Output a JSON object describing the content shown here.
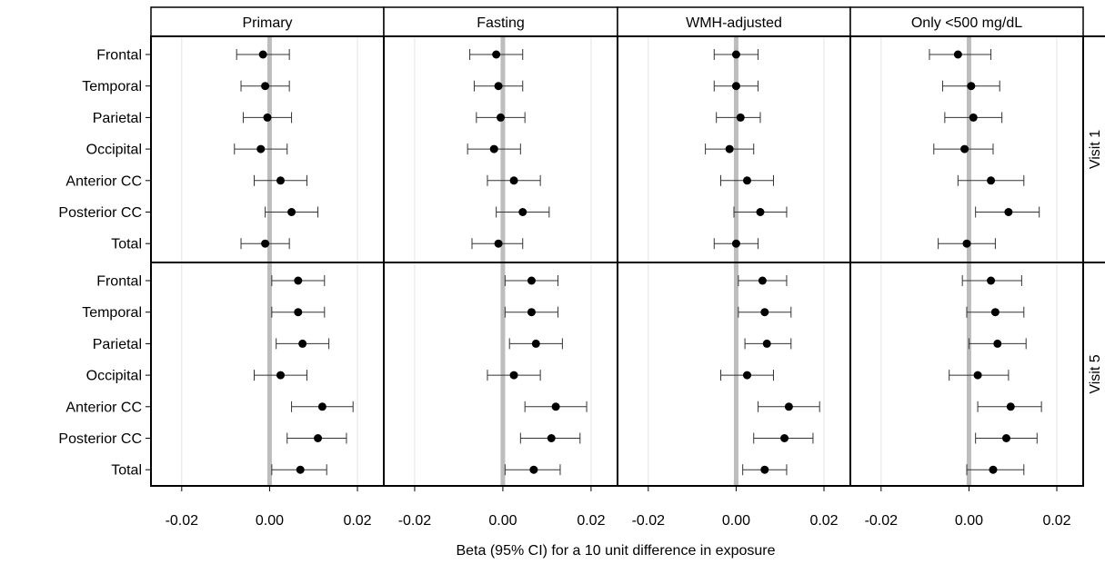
{
  "chart_data": {
    "type": "forest",
    "xlabel": "Beta (95% CI) for a 10 unit difference in exposure",
    "xlim": [
      -0.027,
      0.026
    ],
    "xticks": [
      -0.02,
      0.0,
      0.02
    ],
    "xtick_labels": [
      "-0.02",
      "0.00",
      "0.02"
    ],
    "reference_line": 0,
    "grid": "vertical",
    "columns": [
      "Primary",
      "Fasting",
      "WMH-adjusted",
      "Only <500 mg/dL"
    ],
    "rows": [
      "Visit 1",
      "Visit 5"
    ],
    "categories": [
      "Frontal",
      "Temporal",
      "Parietal",
      "Occipital",
      "Anterior CC",
      "Posterior CC",
      "Total"
    ],
    "panels": [
      {
        "column": "Primary",
        "row": "Visit 1",
        "points": [
          {
            "label": "Frontal",
            "est": -0.0015,
            "lo": -0.0075,
            "hi": 0.0045
          },
          {
            "label": "Temporal",
            "est": -0.001,
            "lo": -0.0065,
            "hi": 0.0045
          },
          {
            "label": "Parietal",
            "est": -0.0005,
            "lo": -0.006,
            "hi": 0.005
          },
          {
            "label": "Occipital",
            "est": -0.002,
            "lo": -0.008,
            "hi": 0.004
          },
          {
            "label": "Anterior CC",
            "est": 0.0025,
            "lo": -0.0035,
            "hi": 0.0085
          },
          {
            "label": "Posterior CC",
            "est": 0.005,
            "lo": -0.001,
            "hi": 0.011
          },
          {
            "label": "Total",
            "est": -0.001,
            "lo": -0.0065,
            "hi": 0.0045
          }
        ]
      },
      {
        "column": "Fasting",
        "row": "Visit 1",
        "points": [
          {
            "label": "Frontal",
            "est": -0.0015,
            "lo": -0.0075,
            "hi": 0.0045
          },
          {
            "label": "Temporal",
            "est": -0.001,
            "lo": -0.0065,
            "hi": 0.0045
          },
          {
            "label": "Parietal",
            "est": -0.0005,
            "lo": -0.006,
            "hi": 0.005
          },
          {
            "label": "Occipital",
            "est": -0.002,
            "lo": -0.008,
            "hi": 0.004
          },
          {
            "label": "Anterior CC",
            "est": 0.0025,
            "lo": -0.0035,
            "hi": 0.0085
          },
          {
            "label": "Posterior CC",
            "est": 0.0045,
            "lo": -0.0015,
            "hi": 0.0105
          },
          {
            "label": "Total",
            "est": -0.001,
            "lo": -0.007,
            "hi": 0.0045
          }
        ]
      },
      {
        "column": "WMH-adjusted",
        "row": "Visit 1",
        "points": [
          {
            "label": "Frontal",
            "est": 0.0,
            "lo": -0.005,
            "hi": 0.005
          },
          {
            "label": "Temporal",
            "est": 0.0,
            "lo": -0.005,
            "hi": 0.005
          },
          {
            "label": "Parietal",
            "est": 0.001,
            "lo": -0.0045,
            "hi": 0.0055
          },
          {
            "label": "Occipital",
            "est": -0.0015,
            "lo": -0.007,
            "hi": 0.004
          },
          {
            "label": "Anterior CC",
            "est": 0.0025,
            "lo": -0.0035,
            "hi": 0.0085
          },
          {
            "label": "Posterior CC",
            "est": 0.0055,
            "lo": -0.0005,
            "hi": 0.0115
          },
          {
            "label": "Total",
            "est": 0.0,
            "lo": -0.005,
            "hi": 0.005
          }
        ]
      },
      {
        "column": "Only <500 mg/dL",
        "row": "Visit 1",
        "points": [
          {
            "label": "Frontal",
            "est": -0.0025,
            "lo": -0.009,
            "hi": 0.005
          },
          {
            "label": "Temporal",
            "est": 0.0005,
            "lo": -0.006,
            "hi": 0.007
          },
          {
            "label": "Parietal",
            "est": 0.001,
            "lo": -0.0055,
            "hi": 0.0075
          },
          {
            "label": "Occipital",
            "est": -0.001,
            "lo": -0.008,
            "hi": 0.0055
          },
          {
            "label": "Anterior CC",
            "est": 0.005,
            "lo": -0.0025,
            "hi": 0.0125
          },
          {
            "label": "Posterior CC",
            "est": 0.009,
            "lo": 0.0015,
            "hi": 0.016
          },
          {
            "label": "Total",
            "est": -0.0005,
            "lo": -0.007,
            "hi": 0.006
          }
        ]
      },
      {
        "column": "Primary",
        "row": "Visit 5",
        "points": [
          {
            "label": "Frontal",
            "est": 0.0065,
            "lo": 0.0005,
            "hi": 0.0125
          },
          {
            "label": "Temporal",
            "est": 0.0065,
            "lo": 0.0005,
            "hi": 0.0125
          },
          {
            "label": "Parietal",
            "est": 0.0075,
            "lo": 0.0015,
            "hi": 0.0135
          },
          {
            "label": "Occipital",
            "est": 0.0025,
            "lo": -0.0035,
            "hi": 0.0085
          },
          {
            "label": "Anterior CC",
            "est": 0.012,
            "lo": 0.005,
            "hi": 0.019
          },
          {
            "label": "Posterior CC",
            "est": 0.011,
            "lo": 0.004,
            "hi": 0.0175
          },
          {
            "label": "Total",
            "est": 0.007,
            "lo": 0.0005,
            "hi": 0.013
          }
        ]
      },
      {
        "column": "Fasting",
        "row": "Visit 5",
        "points": [
          {
            "label": "Frontal",
            "est": 0.0065,
            "lo": 0.0005,
            "hi": 0.0125
          },
          {
            "label": "Temporal",
            "est": 0.0065,
            "lo": 0.0005,
            "hi": 0.0125
          },
          {
            "label": "Parietal",
            "est": 0.0075,
            "lo": 0.0015,
            "hi": 0.0135
          },
          {
            "label": "Occipital",
            "est": 0.0025,
            "lo": -0.0035,
            "hi": 0.0085
          },
          {
            "label": "Anterior CC",
            "est": 0.012,
            "lo": 0.005,
            "hi": 0.019
          },
          {
            "label": "Posterior CC",
            "est": 0.011,
            "lo": 0.004,
            "hi": 0.0175
          },
          {
            "label": "Total",
            "est": 0.007,
            "lo": 0.0005,
            "hi": 0.013
          }
        ]
      },
      {
        "column": "WMH-adjusted",
        "row": "Visit 5",
        "points": [
          {
            "label": "Frontal",
            "est": 0.006,
            "lo": 0.0005,
            "hi": 0.0115
          },
          {
            "label": "Temporal",
            "est": 0.0065,
            "lo": 0.0005,
            "hi": 0.0125
          },
          {
            "label": "Parietal",
            "est": 0.007,
            "lo": 0.002,
            "hi": 0.0125
          },
          {
            "label": "Occipital",
            "est": 0.0025,
            "lo": -0.0035,
            "hi": 0.0085
          },
          {
            "label": "Anterior CC",
            "est": 0.012,
            "lo": 0.005,
            "hi": 0.019
          },
          {
            "label": "Posterior CC",
            "est": 0.011,
            "lo": 0.004,
            "hi": 0.0175
          },
          {
            "label": "Total",
            "est": 0.0065,
            "lo": 0.0015,
            "hi": 0.0115
          }
        ]
      },
      {
        "column": "Only <500 mg/dL",
        "row": "Visit 5",
        "points": [
          {
            "label": "Frontal",
            "est": 0.005,
            "lo": -0.0015,
            "hi": 0.012
          },
          {
            "label": "Temporal",
            "est": 0.006,
            "lo": -0.0005,
            "hi": 0.0125
          },
          {
            "label": "Parietal",
            "est": 0.0065,
            "lo": 0.0,
            "hi": 0.013
          },
          {
            "label": "Occipital",
            "est": 0.002,
            "lo": -0.0045,
            "hi": 0.009
          },
          {
            "label": "Anterior CC",
            "est": 0.0095,
            "lo": 0.002,
            "hi": 0.0165
          },
          {
            "label": "Posterior CC",
            "est": 0.0085,
            "lo": 0.0015,
            "hi": 0.0155
          },
          {
            "label": "Total",
            "est": 0.0055,
            "lo": -0.0005,
            "hi": 0.0125
          }
        ]
      }
    ]
  }
}
